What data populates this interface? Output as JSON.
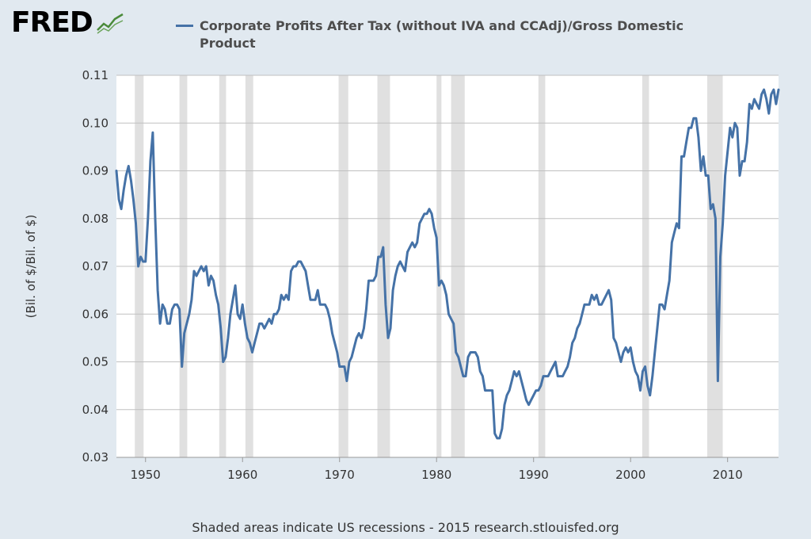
{
  "brand": {
    "name": "FRED",
    "icon": "trend-line-icon"
  },
  "chart_data": {
    "type": "line",
    "series": [
      {
        "name": "Corporate Profits After Tax (without IVA and CCAdj)/Gross Domestic Product",
        "color": "#4572a7",
        "points": [
          [
            1947.0,
            0.09
          ],
          [
            1947.25,
            0.084
          ],
          [
            1947.5,
            0.082
          ],
          [
            1947.75,
            0.086
          ],
          [
            1948.0,
            0.089
          ],
          [
            1948.25,
            0.091
          ],
          [
            1948.5,
            0.088
          ],
          [
            1948.75,
            0.084
          ],
          [
            1949.0,
            0.079
          ],
          [
            1949.25,
            0.07
          ],
          [
            1949.5,
            0.072
          ],
          [
            1949.75,
            0.071
          ],
          [
            1950.0,
            0.071
          ],
          [
            1950.25,
            0.08
          ],
          [
            1950.5,
            0.092
          ],
          [
            1950.75,
            0.098
          ],
          [
            1951.0,
            0.08
          ],
          [
            1951.25,
            0.065
          ],
          [
            1951.5,
            0.058
          ],
          [
            1951.75,
            0.062
          ],
          [
            1952.0,
            0.061
          ],
          [
            1952.25,
            0.058
          ],
          [
            1952.5,
            0.058
          ],
          [
            1952.75,
            0.061
          ],
          [
            1953.0,
            0.062
          ],
          [
            1953.25,
            0.062
          ],
          [
            1953.5,
            0.061
          ],
          [
            1953.75,
            0.049
          ],
          [
            1954.0,
            0.056
          ],
          [
            1954.25,
            0.058
          ],
          [
            1954.5,
            0.06
          ],
          [
            1954.75,
            0.063
          ],
          [
            1955.0,
            0.069
          ],
          [
            1955.25,
            0.068
          ],
          [
            1955.5,
            0.069
          ],
          [
            1955.75,
            0.07
          ],
          [
            1956.0,
            0.069
          ],
          [
            1956.25,
            0.07
          ],
          [
            1956.5,
            0.066
          ],
          [
            1956.75,
            0.068
          ],
          [
            1957.0,
            0.067
          ],
          [
            1957.25,
            0.064
          ],
          [
            1957.5,
            0.062
          ],
          [
            1957.75,
            0.057
          ],
          [
            1958.0,
            0.05
          ],
          [
            1958.25,
            0.051
          ],
          [
            1958.5,
            0.055
          ],
          [
            1958.75,
            0.06
          ],
          [
            1959.0,
            0.063
          ],
          [
            1959.25,
            0.066
          ],
          [
            1959.5,
            0.06
          ],
          [
            1959.75,
            0.059
          ],
          [
            1960.0,
            0.062
          ],
          [
            1960.25,
            0.058
          ],
          [
            1960.5,
            0.055
          ],
          [
            1960.75,
            0.054
          ],
          [
            1961.0,
            0.052
          ],
          [
            1961.25,
            0.054
          ],
          [
            1961.5,
            0.056
          ],
          [
            1961.75,
            0.058
          ],
          [
            1962.0,
            0.058
          ],
          [
            1962.25,
            0.057
          ],
          [
            1962.5,
            0.058
          ],
          [
            1962.75,
            0.059
          ],
          [
            1963.0,
            0.058
          ],
          [
            1963.25,
            0.06
          ],
          [
            1963.5,
            0.06
          ],
          [
            1963.75,
            0.061
          ],
          [
            1964.0,
            0.064
          ],
          [
            1964.25,
            0.063
          ],
          [
            1964.5,
            0.064
          ],
          [
            1964.75,
            0.063
          ],
          [
            1965.0,
            0.069
          ],
          [
            1965.25,
            0.07
          ],
          [
            1965.5,
            0.07
          ],
          [
            1965.75,
            0.071
          ],
          [
            1966.0,
            0.071
          ],
          [
            1966.25,
            0.07
          ],
          [
            1966.5,
            0.069
          ],
          [
            1966.75,
            0.066
          ],
          [
            1967.0,
            0.063
          ],
          [
            1967.25,
            0.063
          ],
          [
            1967.5,
            0.063
          ],
          [
            1967.75,
            0.065
          ],
          [
            1968.0,
            0.062
          ],
          [
            1968.25,
            0.062
          ],
          [
            1968.5,
            0.062
          ],
          [
            1968.75,
            0.061
          ],
          [
            1969.0,
            0.059
          ],
          [
            1969.25,
            0.056
          ],
          [
            1969.5,
            0.054
          ],
          [
            1969.75,
            0.052
          ],
          [
            1970.0,
            0.049
          ],
          [
            1970.25,
            0.049
          ],
          [
            1970.5,
            0.049
          ],
          [
            1970.75,
            0.046
          ],
          [
            1971.0,
            0.05
          ],
          [
            1971.25,
            0.051
          ],
          [
            1971.5,
            0.053
          ],
          [
            1971.75,
            0.055
          ],
          [
            1972.0,
            0.056
          ],
          [
            1972.25,
            0.055
          ],
          [
            1972.5,
            0.057
          ],
          [
            1972.75,
            0.061
          ],
          [
            1973.0,
            0.067
          ],
          [
            1973.25,
            0.067
          ],
          [
            1973.5,
            0.067
          ],
          [
            1973.75,
            0.068
          ],
          [
            1974.0,
            0.072
          ],
          [
            1974.25,
            0.072
          ],
          [
            1974.5,
            0.074
          ],
          [
            1974.75,
            0.062
          ],
          [
            1975.0,
            0.055
          ],
          [
            1975.25,
            0.057
          ],
          [
            1975.5,
            0.065
          ],
          [
            1975.75,
            0.068
          ],
          [
            1976.0,
            0.07
          ],
          [
            1976.25,
            0.071
          ],
          [
            1976.5,
            0.07
          ],
          [
            1976.75,
            0.069
          ],
          [
            1977.0,
            0.073
          ],
          [
            1977.25,
            0.074
          ],
          [
            1977.5,
            0.075
          ],
          [
            1977.75,
            0.074
          ],
          [
            1978.0,
            0.075
          ],
          [
            1978.25,
            0.079
          ],
          [
            1978.5,
            0.08
          ],
          [
            1978.75,
            0.081
          ],
          [
            1979.0,
            0.081
          ],
          [
            1979.25,
            0.082
          ],
          [
            1979.5,
            0.081
          ],
          [
            1979.75,
            0.078
          ],
          [
            1980.0,
            0.076
          ],
          [
            1980.25,
            0.066
          ],
          [
            1980.5,
            0.067
          ],
          [
            1980.75,
            0.066
          ],
          [
            1981.0,
            0.064
          ],
          [
            1981.25,
            0.06
          ],
          [
            1981.5,
            0.059
          ],
          [
            1981.75,
            0.058
          ],
          [
            1982.0,
            0.052
          ],
          [
            1982.25,
            0.051
          ],
          [
            1982.5,
            0.049
          ],
          [
            1982.75,
            0.047
          ],
          [
            1983.0,
            0.047
          ],
          [
            1983.25,
            0.051
          ],
          [
            1983.5,
            0.052
          ],
          [
            1983.75,
            0.052
          ],
          [
            1984.0,
            0.052
          ],
          [
            1984.25,
            0.051
          ],
          [
            1984.5,
            0.048
          ],
          [
            1984.75,
            0.047
          ],
          [
            1985.0,
            0.044
          ],
          [
            1985.25,
            0.044
          ],
          [
            1985.5,
            0.044
          ],
          [
            1985.75,
            0.044
          ],
          [
            1986.0,
            0.035
          ],
          [
            1986.25,
            0.034
          ],
          [
            1986.5,
            0.034
          ],
          [
            1986.75,
            0.036
          ],
          [
            1987.0,
            0.041
          ],
          [
            1987.25,
            0.043
          ],
          [
            1987.5,
            0.044
          ],
          [
            1987.75,
            0.046
          ],
          [
            1988.0,
            0.048
          ],
          [
            1988.25,
            0.047
          ],
          [
            1988.5,
            0.048
          ],
          [
            1988.75,
            0.046
          ],
          [
            1989.0,
            0.044
          ],
          [
            1989.25,
            0.042
          ],
          [
            1989.5,
            0.041
          ],
          [
            1989.75,
            0.042
          ],
          [
            1990.0,
            0.043
          ],
          [
            1990.25,
            0.044
          ],
          [
            1990.5,
            0.044
          ],
          [
            1990.75,
            0.045
          ],
          [
            1991.0,
            0.047
          ],
          [
            1991.25,
            0.047
          ],
          [
            1991.5,
            0.047
          ],
          [
            1991.75,
            0.048
          ],
          [
            1992.0,
            0.049
          ],
          [
            1992.25,
            0.05
          ],
          [
            1992.5,
            0.047
          ],
          [
            1992.75,
            0.047
          ],
          [
            1993.0,
            0.047
          ],
          [
            1993.25,
            0.048
          ],
          [
            1993.5,
            0.049
          ],
          [
            1993.75,
            0.051
          ],
          [
            1994.0,
            0.054
          ],
          [
            1994.25,
            0.055
          ],
          [
            1994.5,
            0.057
          ],
          [
            1994.75,
            0.058
          ],
          [
            1995.0,
            0.06
          ],
          [
            1995.25,
            0.062
          ],
          [
            1995.5,
            0.062
          ],
          [
            1995.75,
            0.062
          ],
          [
            1996.0,
            0.064
          ],
          [
            1996.25,
            0.063
          ],
          [
            1996.5,
            0.064
          ],
          [
            1996.75,
            0.062
          ],
          [
            1997.0,
            0.062
          ],
          [
            1997.25,
            0.063
          ],
          [
            1997.5,
            0.064
          ],
          [
            1997.75,
            0.065
          ],
          [
            1998.0,
            0.063
          ],
          [
            1998.25,
            0.055
          ],
          [
            1998.5,
            0.054
          ],
          [
            1998.75,
            0.052
          ],
          [
            1999.0,
            0.05
          ],
          [
            1999.25,
            0.052
          ],
          [
            1999.5,
            0.053
          ],
          [
            1999.75,
            0.052
          ],
          [
            2000.0,
            0.053
          ],
          [
            2000.25,
            0.05
          ],
          [
            2000.5,
            0.048
          ],
          [
            2000.75,
            0.047
          ],
          [
            2001.0,
            0.044
          ],
          [
            2001.25,
            0.048
          ],
          [
            2001.5,
            0.049
          ],
          [
            2001.75,
            0.045
          ],
          [
            2002.0,
            0.043
          ],
          [
            2002.25,
            0.047
          ],
          [
            2002.5,
            0.052
          ],
          [
            2002.75,
            0.057
          ],
          [
            2003.0,
            0.062
          ],
          [
            2003.25,
            0.062
          ],
          [
            2003.5,
            0.061
          ],
          [
            2003.75,
            0.064
          ],
          [
            2004.0,
            0.067
          ],
          [
            2004.25,
            0.075
          ],
          [
            2004.5,
            0.077
          ],
          [
            2004.75,
            0.079
          ],
          [
            2005.0,
            0.078
          ],
          [
            2005.25,
            0.093
          ],
          [
            2005.5,
            0.093
          ],
          [
            2005.75,
            0.096
          ],
          [
            2006.0,
            0.099
          ],
          [
            2006.25,
            0.099
          ],
          [
            2006.5,
            0.101
          ],
          [
            2006.75,
            0.101
          ],
          [
            2007.0,
            0.097
          ],
          [
            2007.25,
            0.09
          ],
          [
            2007.5,
            0.093
          ],
          [
            2007.75,
            0.089
          ],
          [
            2008.0,
            0.089
          ],
          [
            2008.25,
            0.082
          ],
          [
            2008.5,
            0.083
          ],
          [
            2008.75,
            0.08
          ],
          [
            2009.0,
            0.046
          ],
          [
            2009.25,
            0.072
          ],
          [
            2009.5,
            0.079
          ],
          [
            2009.75,
            0.089
          ],
          [
            2010.0,
            0.094
          ],
          [
            2010.25,
            0.099
          ],
          [
            2010.5,
            0.097
          ],
          [
            2010.75,
            0.1
          ],
          [
            2011.0,
            0.099
          ],
          [
            2011.25,
            0.089
          ],
          [
            2011.5,
            0.092
          ],
          [
            2011.75,
            0.092
          ],
          [
            2012.0,
            0.096
          ],
          [
            2012.25,
            0.104
          ],
          [
            2012.5,
            0.103
          ],
          [
            2012.75,
            0.105
          ],
          [
            2013.0,
            0.104
          ],
          [
            2013.25,
            0.103
          ],
          [
            2013.5,
            0.106
          ],
          [
            2013.75,
            0.107
          ],
          [
            2014.0,
            0.105
          ],
          [
            2014.25,
            0.102
          ],
          [
            2014.5,
            0.106
          ],
          [
            2014.75,
            0.107
          ],
          [
            2015.0,
            0.104
          ],
          [
            2015.25,
            0.107
          ]
        ]
      }
    ],
    "recessions": [
      [
        1948.9,
        1949.8
      ],
      [
        1953.5,
        1954.3
      ],
      [
        1957.6,
        1958.3
      ],
      [
        1960.3,
        1961.1
      ],
      [
        1969.9,
        1970.9
      ],
      [
        1973.9,
        1975.2
      ],
      [
        1980.0,
        1980.5
      ],
      [
        1981.5,
        1982.9
      ],
      [
        1990.5,
        1991.2
      ],
      [
        2001.2,
        2001.9
      ],
      [
        2007.9,
        2009.5
      ]
    ],
    "xlim": [
      1947.0,
      2015.25
    ],
    "ylim": [
      0.03,
      0.11
    ],
    "x_ticks": [
      1950,
      1960,
      1970,
      1980,
      1990,
      2000,
      2010
    ],
    "y_ticks": [
      0.03,
      0.04,
      0.05,
      0.06,
      0.07,
      0.08,
      0.09,
      0.1,
      0.11
    ],
    "y_tick_labels": [
      "0.03",
      "0.04",
      "0.05",
      "0.06",
      "0.07",
      "0.08",
      "0.09",
      "0.10",
      "0.11"
    ],
    "ylabel": "(Bil. of $/Bil. of $)",
    "grid": true,
    "legend_placement": "top"
  },
  "footer": "Shaded areas indicate US recessions - 2015 research.stlouisfed.org"
}
